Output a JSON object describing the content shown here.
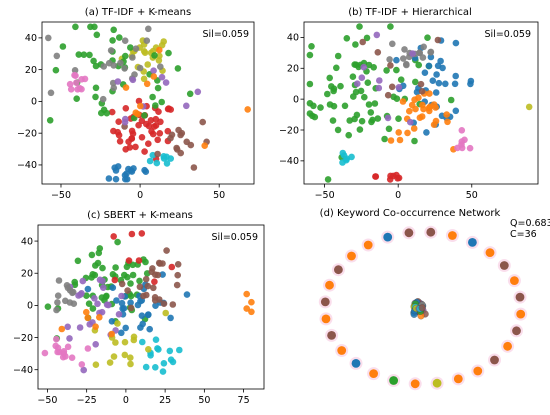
{
  "palette": {
    "blue": "#1f77b4",
    "orange": "#ff7f0e",
    "green": "#2ca02c",
    "red": "#d62728",
    "purple": "#9467bd",
    "brown": "#8c564b",
    "pink": "#e377c2",
    "gray": "#7f7f7f",
    "olive": "#bcbd22",
    "cyan": "#17becf"
  },
  "chart_data": [
    {
      "type": "scatter",
      "title": "(a) TF-IDF + K-means",
      "annotation": "Sil=0.059",
      "xlim": [
        -62,
        72
      ],
      "ylim": [
        -52,
        50
      ],
      "xticks": [
        -50,
        0,
        50
      ],
      "yticks": [
        -40,
        -20,
        0,
        20,
        40
      ],
      "clusters": [
        {
          "color": "olive",
          "center": [
            5,
            30
          ],
          "spread": [
            8,
            6
          ],
          "n": 22
        },
        {
          "color": "red",
          "center": [
            3,
            -18
          ],
          "spread": [
            10,
            9
          ],
          "n": 45
        },
        {
          "color": "green",
          "center": [
            -15,
            15
          ],
          "spread": [
            22,
            18
          ],
          "n": 45
        },
        {
          "color": "gray",
          "center": [
            -25,
            25
          ],
          "spread": [
            20,
            14
          ],
          "n": 22
        },
        {
          "color": "pink",
          "center": [
            -40,
            12
          ],
          "spread": [
            4,
            4
          ],
          "n": 10
        },
        {
          "color": "blue",
          "center": [
            -7,
            -45
          ],
          "spread": [
            9,
            4
          ],
          "n": 15
        },
        {
          "color": "cyan",
          "center": [
            15,
            -35
          ],
          "spread": [
            4,
            3
          ],
          "n": 8
        },
        {
          "color": "brown",
          "center": [
            25,
            -25
          ],
          "spread": [
            10,
            8
          ],
          "n": 15
        },
        {
          "color": "purple",
          "center": [
            5,
            10
          ],
          "spread": [
            14,
            10
          ],
          "n": 10
        },
        {
          "color": "orange",
          "center": [
            0,
            0
          ],
          "spread": [
            15,
            14
          ],
          "n": 8
        }
      ],
      "outliers": [
        {
          "x": 68,
          "y": -5,
          "color": "orange"
        }
      ]
    },
    {
      "type": "scatter",
      "title": "(b) TF-IDF + Hierarchical",
      "annotation": "Sil=0.059",
      "xlim": [
        -64,
        95
      ],
      "ylim": [
        -55,
        50
      ],
      "xticks": [
        -50,
        0,
        50
      ],
      "yticks": [
        -40,
        -20,
        0,
        20,
        40
      ],
      "clusters": [
        {
          "color": "green",
          "center": [
            -25,
            5
          ],
          "spread": [
            22,
            20
          ],
          "n": 75
        },
        {
          "color": "blue",
          "center": [
            25,
            10
          ],
          "spread": [
            15,
            12
          ],
          "n": 35
        },
        {
          "color": "orange",
          "center": [
            15,
            -12
          ],
          "spread": [
            10,
            8
          ],
          "n": 28
        },
        {
          "color": "gray",
          "center": [
            10,
            30
          ],
          "spread": [
            10,
            7
          ],
          "n": 15
        },
        {
          "color": "red",
          "center": [
            -5,
            -50
          ],
          "spread": [
            5,
            2
          ],
          "n": 8
        },
        {
          "color": "cyan",
          "center": [
            -35,
            -38
          ],
          "spread": [
            3,
            3
          ],
          "n": 6
        },
        {
          "color": "pink",
          "center": [
            45,
            -30
          ],
          "spread": [
            4,
            3
          ],
          "n": 7
        },
        {
          "color": "purple",
          "center": [
            -10,
            10
          ],
          "spread": [
            20,
            15
          ],
          "n": 10
        },
        {
          "color": "brown",
          "center": [
            -5,
            15
          ],
          "spread": [
            20,
            15
          ],
          "n": 8
        }
      ],
      "outliers": [
        {
          "x": 89,
          "y": -5,
          "color": "olive"
        }
      ]
    },
    {
      "type": "scatter",
      "title": "(c) SBERT + K-means",
      "annotation": "Sil=0.059",
      "xlim": [
        -56,
        88
      ],
      "ylim": [
        -52,
        50
      ],
      "xticks": [
        -50,
        -25,
        0,
        25,
        50,
        75
      ],
      "yticks": [
        -40,
        -20,
        0,
        20,
        40
      ],
      "clusters": [
        {
          "color": "green",
          "center": [
            -10,
            10
          ],
          "spread": [
            15,
            12
          ],
          "n": 55
        },
        {
          "color": "blue",
          "center": [
            10,
            0
          ],
          "spread": [
            12,
            10
          ],
          "n": 30
        },
        {
          "color": "brown",
          "center": [
            20,
            15
          ],
          "spread": [
            10,
            8
          ],
          "n": 25
        },
        {
          "color": "purple",
          "center": [
            -20,
            0
          ],
          "spread": [
            12,
            10
          ],
          "n": 25
        },
        {
          "color": "pink",
          "center": [
            -40,
            -30
          ],
          "spread": [
            5,
            4
          ],
          "n": 14
        },
        {
          "color": "gray",
          "center": [
            -40,
            5
          ],
          "spread": [
            5,
            7
          ],
          "n": 12
        },
        {
          "color": "cyan",
          "center": [
            20,
            -30
          ],
          "spread": [
            6,
            5
          ],
          "n": 14
        },
        {
          "color": "olive",
          "center": [
            -5,
            -25
          ],
          "spread": [
            15,
            10
          ],
          "n": 15
        },
        {
          "color": "red",
          "center": [
            0,
            20
          ],
          "spread": [
            20,
            15
          ],
          "n": 8
        },
        {
          "color": "orange",
          "center": [
            -20,
            -15
          ],
          "spread": [
            10,
            8
          ],
          "n": 6
        }
      ],
      "outliers": [
        {
          "x": 77,
          "y": 7,
          "color": "orange"
        },
        {
          "x": 80,
          "y": 2,
          "color": "orange"
        },
        {
          "x": 77,
          "y": -2,
          "color": "orange"
        },
        {
          "x": 80,
          "y": -4,
          "color": "orange"
        }
      ]
    },
    {
      "type": "scatter",
      "title": "(d) Keyword Co-occurrence Network",
      "annotation_lines": [
        "Q=0.683",
        "C=36"
      ],
      "network": {
        "ring": [
          {
            "color": "brown"
          },
          {
            "color": "orange"
          },
          {
            "color": "blue"
          },
          {
            "color": "orange"
          },
          {
            "color": "brown"
          },
          {
            "color": "orange"
          },
          {
            "color": "brown"
          },
          {
            "color": "orange"
          },
          {
            "color": "brown"
          },
          {
            "color": "orange"
          },
          {
            "color": "brown"
          },
          {
            "color": "orange"
          },
          {
            "color": "orange"
          },
          {
            "color": "olive"
          },
          {
            "color": "orange"
          },
          {
            "color": "green"
          },
          {
            "color": "orange"
          },
          {
            "color": "blue"
          },
          {
            "color": "orange"
          },
          {
            "color": "brown"
          },
          {
            "color": "orange"
          },
          {
            "color": "brown"
          },
          {
            "color": "orange"
          },
          {
            "color": "brown"
          },
          {
            "color": "orange"
          },
          {
            "color": "orange"
          },
          {
            "color": "blue"
          },
          {
            "color": "brown"
          }
        ],
        "center_colors": [
          "blue",
          "orange",
          "green",
          "olive",
          "gray",
          "purple",
          "cyan",
          "brown"
        ]
      }
    }
  ]
}
